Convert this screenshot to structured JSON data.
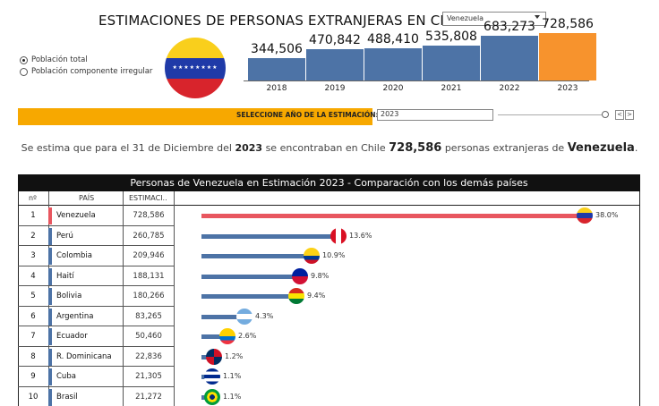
{
  "title": "ESTIMACIONES DE PERSONAS EXTRANJERAS EN CHILE DE",
  "country_select": {
    "value": "Venezuela"
  },
  "radios": [
    {
      "label": "Población total",
      "selected": true
    },
    {
      "label": "Población componente irregular",
      "selected": false
    }
  ],
  "years_chart": {
    "years": [
      "2018",
      "2019",
      "2020",
      "2021",
      "2022",
      "2023"
    ],
    "values": [
      344506,
      470842,
      488410,
      535808,
      683273,
      728586
    ],
    "labels": [
      "344,506",
      "470,842",
      "488,410",
      "535,808",
      "683,273",
      "728,586"
    ],
    "selected_year": "2023"
  },
  "year_selector": {
    "label": "SELECCIONE AÑO DE LA ESTIMACIÓN:",
    "value": "2023",
    "prev": "<",
    "next": ">"
  },
  "summary": {
    "prefix": "Se estima que para el 31 de Diciembre del",
    "year": "2023",
    "middle": "se encontraban en Chile",
    "count": "728,586",
    "suffix": "personas extranjeras de",
    "country": "Venezuela",
    "end": "."
  },
  "table": {
    "header": "Personas de Venezuela en Estimación 2023 - Comparación con los demás países",
    "columns": [
      "nº",
      "PAÍS",
      "ESTIMACI.."
    ],
    "rows": [
      {
        "n": "1",
        "pais": "Venezuela",
        "est": "728,586",
        "pct": "38.0%",
        "share": 38.0,
        "selected": true
      },
      {
        "n": "2",
        "pais": "Perú",
        "est": "260,785",
        "pct": "13.6%",
        "share": 13.6
      },
      {
        "n": "3",
        "pais": "Colombia",
        "est": "209,946",
        "pct": "10.9%",
        "share": 10.9
      },
      {
        "n": "4",
        "pais": "Haití",
        "est": "188,131",
        "pct": "9.8%",
        "share": 9.8
      },
      {
        "n": "5",
        "pais": "Bolivia",
        "est": "180,266",
        "pct": "9.4%",
        "share": 9.4
      },
      {
        "n": "6",
        "pais": "Argentina",
        "est": "83,265",
        "pct": "4.3%",
        "share": 4.3
      },
      {
        "n": "7",
        "pais": "Ecuador",
        "est": "50,460",
        "pct": "2.6%",
        "share": 2.6
      },
      {
        "n": "8",
        "pais": "R. Dominicana",
        "est": "22,836",
        "pct": "1.2%",
        "share": 1.2
      },
      {
        "n": "9",
        "pais": "Cuba",
        "est": "21,305",
        "pct": "1.1%",
        "share": 1.1
      },
      {
        "n": "10",
        "pais": "Brasil",
        "est": "21,272",
        "pct": "1.1%",
        "share": 1.1
      }
    ]
  },
  "colors": {
    "bar": "#4d73a6",
    "selected_year": "#f7932d",
    "selected_row": "#e8565f",
    "selector": "#f7a800"
  }
}
